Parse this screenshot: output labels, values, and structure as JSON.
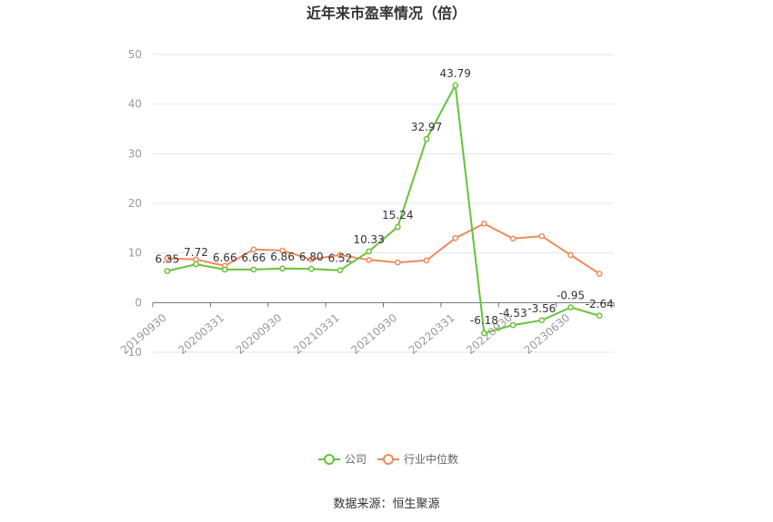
{
  "chart_data": {
    "type": "line",
    "title": "近年来市盈率情况（倍）",
    "source": "数据来源：恒生聚源",
    "ylim": [
      -10,
      50
    ],
    "yticks": [
      -10,
      0,
      10,
      20,
      30,
      40,
      50
    ],
    "grid": true,
    "legend_position": "bottom",
    "x": [
      "20190930",
      "20191231",
      "20200331",
      "20200630",
      "20200930",
      "20201231",
      "20210331",
      "20210630",
      "20210930",
      "20211231",
      "20220331",
      "20220630",
      "20220930",
      "20221231",
      "20230630",
      "20230930"
    ],
    "xtick_labels": [
      "20190930",
      "20200331",
      "20200930",
      "20210331",
      "20210930",
      "20220331",
      "20220930",
      "20230630"
    ],
    "series": [
      {
        "name": "公司",
        "color": "#67c23a",
        "values": [
          6.35,
          7.72,
          6.66,
          6.66,
          6.86,
          6.8,
          6.52,
          10.33,
          15.24,
          32.97,
          43.79,
          -6.18,
          -4.53,
          -3.56,
          -0.95,
          -2.64
        ],
        "labels": [
          "6.35",
          "7.72",
          "6.66",
          "6.66",
          "6.86",
          "6.80",
          "6.52",
          "10.33",
          "15.24",
          "32.97",
          "43.79",
          "-6.18",
          "-4.53",
          "-3.56",
          "-0.95",
          "-2.64"
        ]
      },
      {
        "name": "行业中位数",
        "color": "#f0895a",
        "values": [
          8.9,
          8.7,
          7.4,
          10.7,
          10.5,
          8.7,
          9.6,
          8.6,
          8.1,
          8.5,
          13.0,
          15.9,
          12.9,
          13.4,
          9.6,
          5.8
        ]
      }
    ]
  }
}
